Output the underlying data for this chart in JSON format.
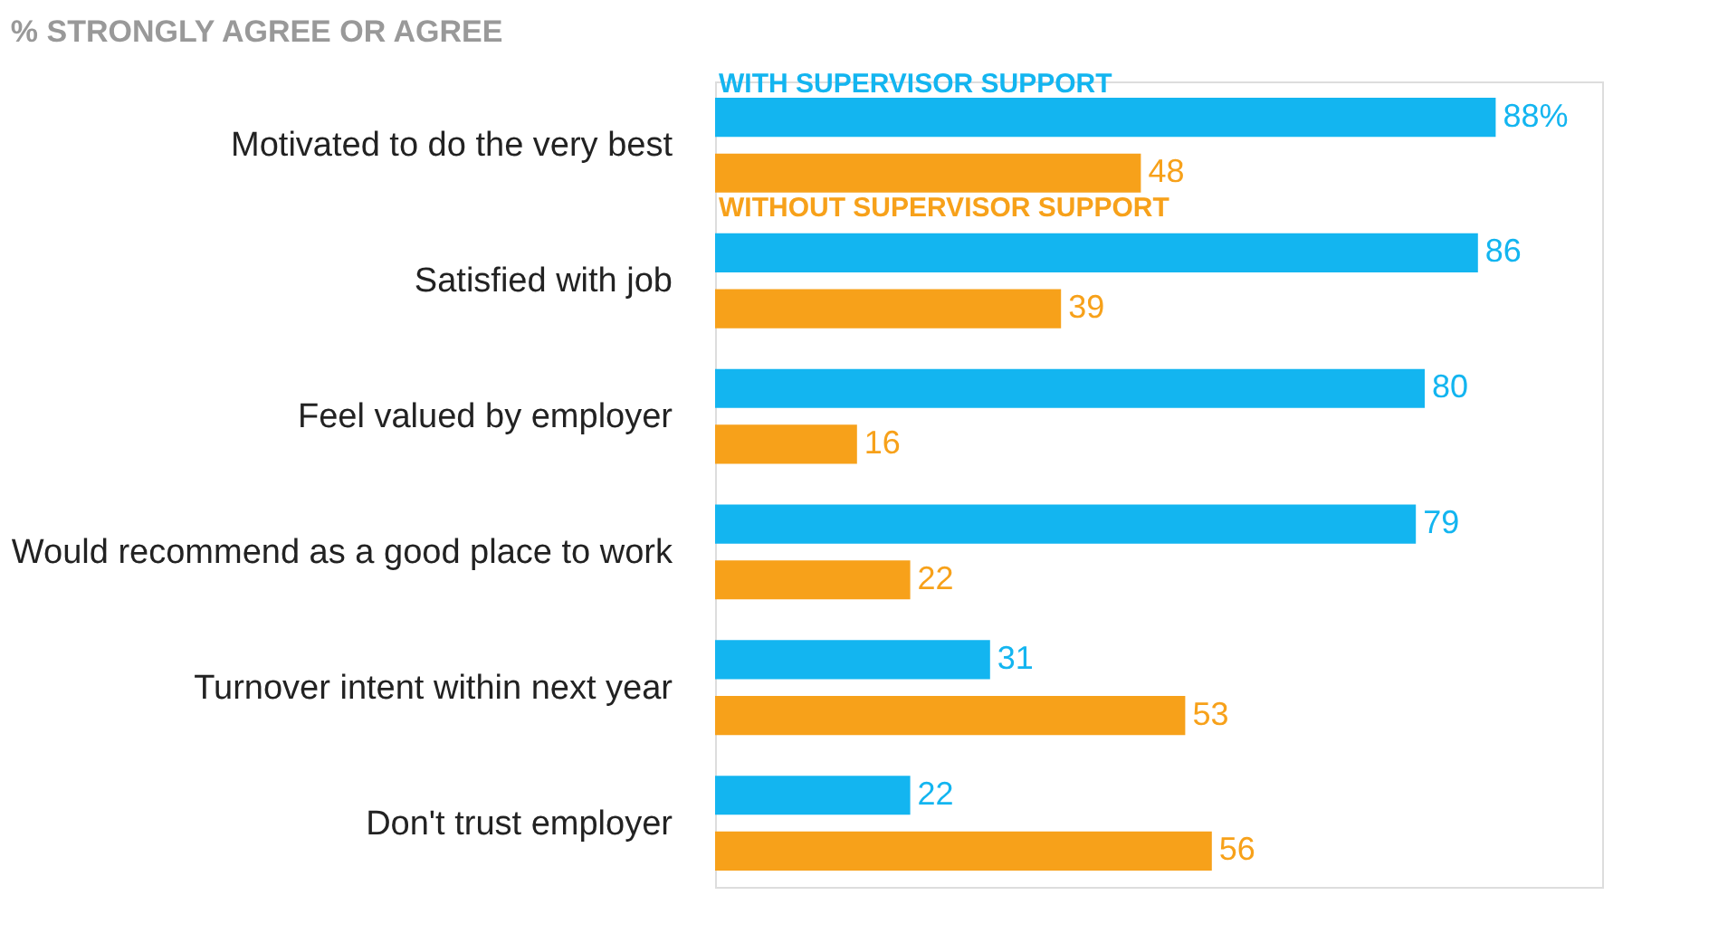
{
  "chart_data": {
    "type": "bar",
    "orientation": "horizontal",
    "title": "% STRONGLY AGREE OR AGREE",
    "categories": [
      "Motivated to do the very best",
      "Satisfied with job",
      "Feel valued by employer",
      "Would recommend as a good place to work",
      "Turnover intent within next year",
      "Don't trust employer"
    ],
    "series": [
      {
        "name": "WITH SUPERVISOR SUPPORT",
        "color": "#13b5f0",
        "values": [
          88,
          86,
          80,
          79,
          31,
          22
        ],
        "value_labels": [
          "88%",
          "86",
          "80",
          "79",
          "31",
          "22"
        ]
      },
      {
        "name": "WITHOUT SUPERVISOR  SUPPORT",
        "color": "#f7a11a",
        "values": [
          48,
          39,
          16,
          22,
          53,
          56
        ],
        "value_labels": [
          "48",
          "39",
          "16",
          "22",
          "53",
          "56"
        ]
      }
    ],
    "xlim": [
      0,
      100
    ],
    "tick_labels": "y",
    "grid": false
  }
}
